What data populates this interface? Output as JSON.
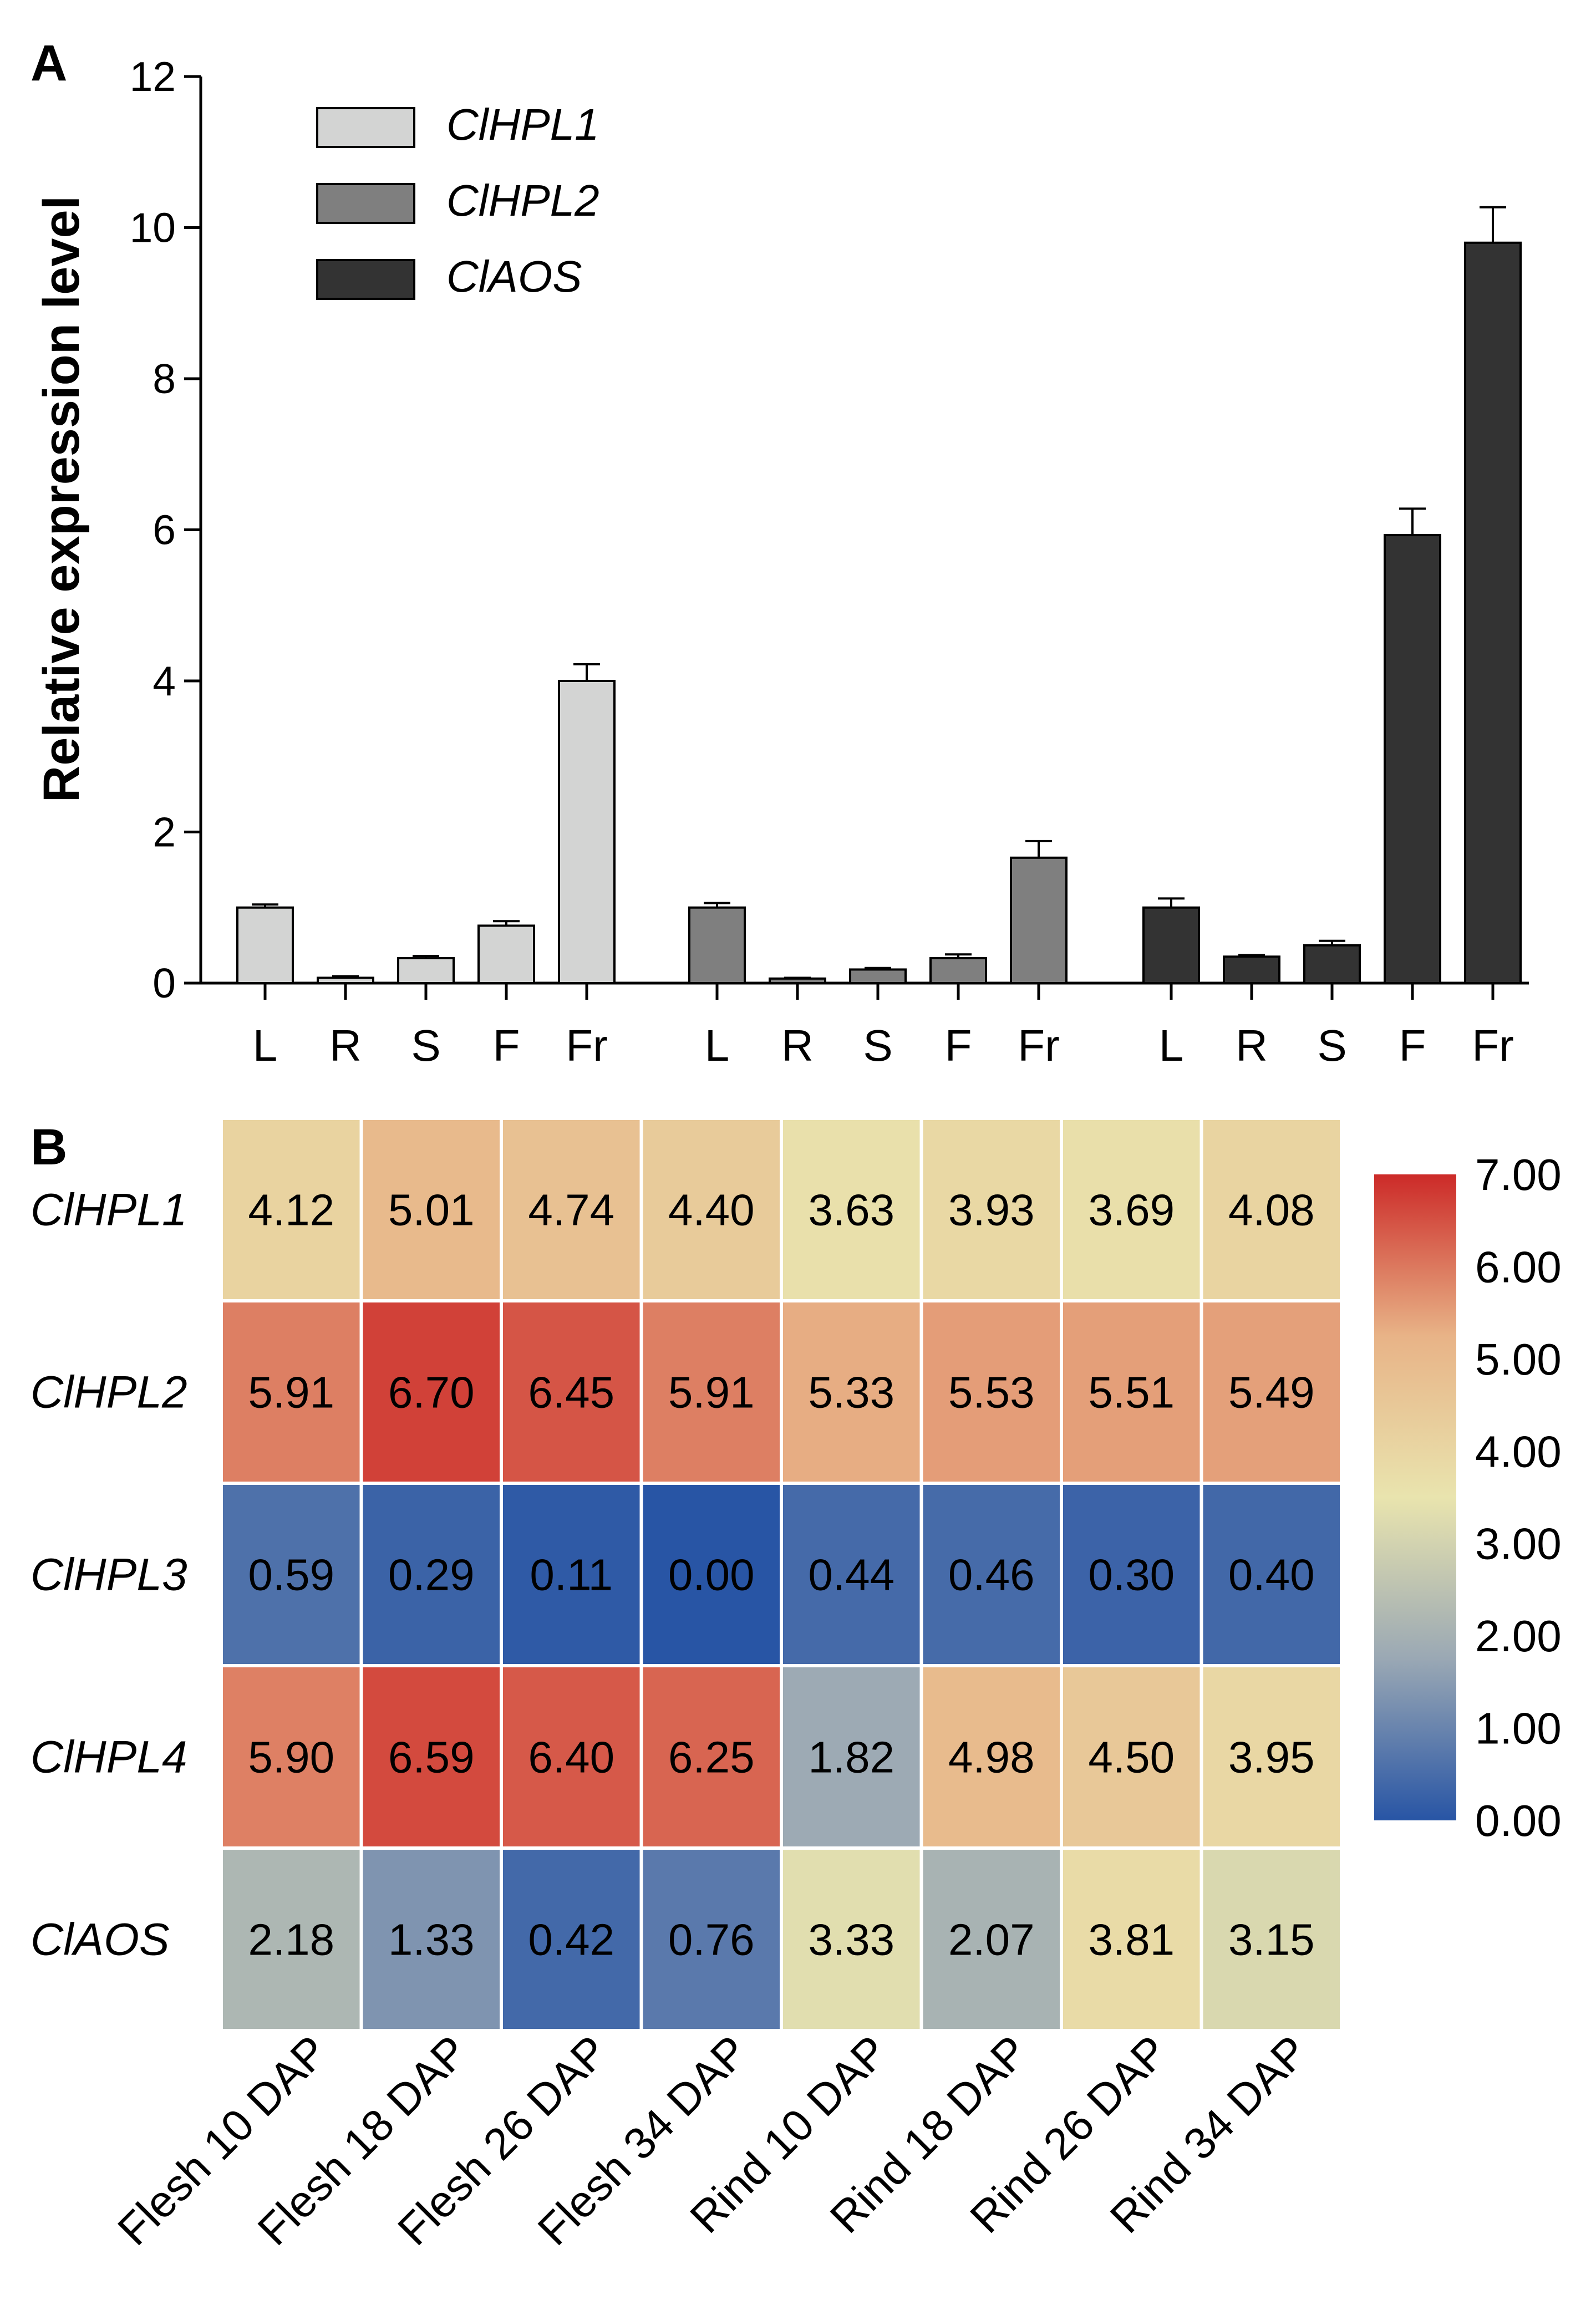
{
  "panel_a_label": "A",
  "panel_b_label": "B",
  "chart_data": [
    {
      "type": "bar",
      "title": "",
      "xlabel": "",
      "ylabel": "Relative expression level",
      "ylim": [
        0,
        12
      ],
      "yticks": [
        0,
        2,
        4,
        6,
        8,
        10,
        12
      ],
      "grid": false,
      "legend_position": "top-left",
      "categories": [
        "L",
        "R",
        "S",
        "F",
        "Fr"
      ],
      "series": [
        {
          "name": "ClHPL1",
          "color": "#d3d4d3",
          "values": [
            1.0,
            0.07,
            0.33,
            0.76,
            4.0
          ],
          "errors": [
            0.04,
            0.02,
            0.03,
            0.06,
            0.22
          ]
        },
        {
          "name": "ClHPL2",
          "color": "#7f7f7f",
          "values": [
            1.0,
            0.06,
            0.18,
            0.33,
            1.66
          ],
          "errors": [
            0.06,
            0.01,
            0.02,
            0.05,
            0.22
          ]
        },
        {
          "name": "ClAOS",
          "color": "#333333",
          "values": [
            1.0,
            0.35,
            0.5,
            5.93,
            9.8
          ],
          "errors": [
            0.12,
            0.02,
            0.06,
            0.35,
            0.47
          ]
        }
      ]
    },
    {
      "type": "heatmap",
      "title": "",
      "columns": [
        "Flesh 10 DAP",
        "Flesh 18 DAP",
        "Flesh 26 DAP",
        "Flesh 34 DAP",
        "Rind 10 DAP",
        "Rind 18 DAP",
        "Rind 26 DAP",
        "Rind 34 DAP"
      ],
      "rows": [
        "ClHPL1",
        "ClHPL2",
        "ClHPL3",
        "ClHPL4",
        "ClAOS"
      ],
      "values": [
        [
          "4.12",
          "5.01",
          "4.74",
          "4.40",
          "3.63",
          "3.93",
          "3.69",
          "4.08"
        ],
        [
          "5.91",
          "6.70",
          "6.45",
          "5.91",
          "5.33",
          "5.53",
          "5.51",
          "5.49"
        ],
        [
          "0.59",
          "0.29",
          "0.11",
          "0.00",
          "0.44",
          "0.46",
          "0.30",
          "0.40"
        ],
        [
          "5.90",
          "6.59",
          "6.40",
          "6.25",
          "1.82",
          "4.98",
          "4.50",
          "3.95"
        ],
        [
          "2.18",
          "1.33",
          "0.42",
          "0.76",
          "3.33",
          "2.07",
          "3.81",
          "3.15"
        ]
      ],
      "colorbar": {
        "min": 0,
        "max": 7,
        "ticks": [
          "7.00",
          "6.00",
          "5.00",
          "4.00",
          "3.00",
          "2.00",
          "1.00",
          "0.00"
        ],
        "stops": [
          "#2855a5",
          "#9aa8b4",
          "#e9e4ae",
          "#e8b387",
          "#cc2a28"
        ]
      }
    }
  ]
}
